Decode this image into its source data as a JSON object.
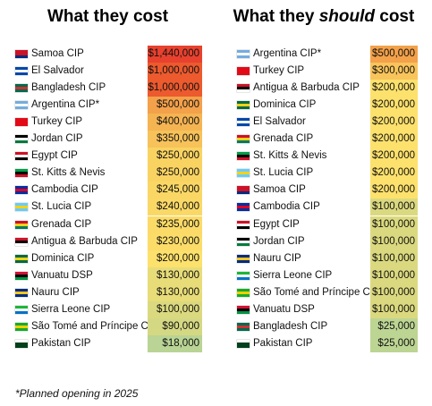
{
  "tables": [
    {
      "title": [
        "What they cost"
      ],
      "rows": [
        {
          "name": "Samoa CIP",
          "value": "$1,440,000",
          "color": "#e8412e"
        },
        {
          "name": "El Salvador",
          "value": "$1,000,000",
          "color": "#ec5a2e"
        },
        {
          "name": "Bangladesh CIP",
          "value": "$1,000,000",
          "color": "#ec5a2e"
        },
        {
          "name": "Argentina CIP*",
          "value": "$500,000",
          "color": "#f3a14a"
        },
        {
          "name": "Turkey CIP",
          "value": "$400,000",
          "color": "#f5b452"
        },
        {
          "name": "Jordan CIP",
          "value": "$350,000",
          "color": "#f7c25a"
        },
        {
          "name": "Egypt CIP",
          "value": "$250,000",
          "color": "#f9d362"
        },
        {
          "name": "St. Kitts & Nevis",
          "value": "$250,000",
          "color": "#f9d362"
        },
        {
          "name": "Cambodia CIP",
          "value": "$245,000",
          "color": "#fad765"
        },
        {
          "name": "St. Lucia CIP",
          "value": "$240,000",
          "color": "#fad866"
        },
        {
          "name": "Grenada CIP",
          "value": "$235,000",
          "color": "#fbda67"
        },
        {
          "name": "Antigua & Barbuda CIP",
          "value": "$230,000",
          "color": "#fbdc68"
        },
        {
          "name": "Dominica CIP",
          "value": "$200,000",
          "color": "#fde16d"
        },
        {
          "name": "Vanuatu DSP",
          "value": "$130,000",
          "color": "#e7dc78"
        },
        {
          "name": "Nauru CIP",
          "value": "$130,000",
          "color": "#e7dc78"
        },
        {
          "name": "Sierra Leone CIP",
          "value": "$100,000",
          "color": "#dbd97f"
        },
        {
          "name": "São Tomé and Príncipe CIP",
          "value": "$90,000",
          "color": "#d5d883"
        },
        {
          "name": "Pakistan CIP",
          "value": "$18,000",
          "color": "#b9d494"
        }
      ]
    },
    {
      "title": [
        "What they ",
        "should",
        " cost"
      ],
      "rows": [
        {
          "name": "Argentina CIP*",
          "value": "$500,000",
          "color": "#f3a14a"
        },
        {
          "name": "Turkey CIP",
          "value": "$300,000",
          "color": "#f8c45b"
        },
        {
          "name": "Antigua & Barbuda CIP",
          "value": "$200,000",
          "color": "#fde16d"
        },
        {
          "name": "Dominica CIP",
          "value": "$200,000",
          "color": "#fde16d"
        },
        {
          "name": "El Salvador",
          "value": "$200,000",
          "color": "#fde16d"
        },
        {
          "name": "Grenada CIP",
          "value": "$200,000",
          "color": "#fde16d"
        },
        {
          "name": "St. Kitts & Nevis",
          "value": "$200,000",
          "color": "#fde16d"
        },
        {
          "name": "St. Lucia CIP",
          "value": "$200,000",
          "color": "#fde16d"
        },
        {
          "name": "Samoa CIP",
          "value": "$200,000",
          "color": "#fde16d"
        },
        {
          "name": "Cambodia CIP",
          "value": "$100,000",
          "color": "#dbd97f"
        },
        {
          "name": "Egypt CIP",
          "value": "$100,000",
          "color": "#dbd97f"
        },
        {
          "name": "Jordan CIP",
          "value": "$100,000",
          "color": "#dbd97f"
        },
        {
          "name": "Nauru CIP",
          "value": "$100,000",
          "color": "#dbd97f"
        },
        {
          "name": "Sierra Leone CIP",
          "value": "$100,000",
          "color": "#dbd97f"
        },
        {
          "name": "São Tomé and Príncipe CIP",
          "value": "$100,000",
          "color": "#dbd97f"
        },
        {
          "name": "Vanuatu DSP",
          "value": "$100,000",
          "color": "#dbd97f"
        },
        {
          "name": "Bangladesh CIP",
          "value": "$25,000",
          "color": "#bcd593"
        },
        {
          "name": "Pakistan CIP",
          "value": "$25,000",
          "color": "#bcd593"
        }
      ]
    }
  ],
  "footnote": "*Planned opening in 2025"
}
